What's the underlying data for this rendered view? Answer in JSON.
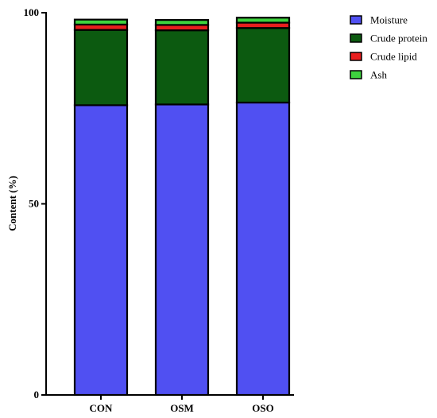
{
  "chart_data": {
    "type": "bar",
    "stacked": true,
    "categories": [
      "CON",
      "OSM",
      "OSO"
    ],
    "series": [
      {
        "name": "Moisture",
        "color": "#5050f2",
        "values": [
          75.8,
          76.0,
          76.5
        ]
      },
      {
        "name": "Crude protein",
        "color": "#0c5a10",
        "values": [
          19.7,
          19.4,
          19.5
        ]
      },
      {
        "name": "Crude lipid",
        "color": "#e81e1e",
        "values": [
          1.4,
          1.4,
          1.4
        ]
      },
      {
        "name": "Ash",
        "color": "#3ed23e",
        "values": [
          1.3,
          1.3,
          1.3
        ]
      }
    ],
    "ylabel": "Content (%)",
    "xlabel": "",
    "ylim": [
      0,
      100
    ],
    "yticks": [
      0,
      50,
      100
    ],
    "grid": false,
    "legend_position": "top-right"
  }
}
